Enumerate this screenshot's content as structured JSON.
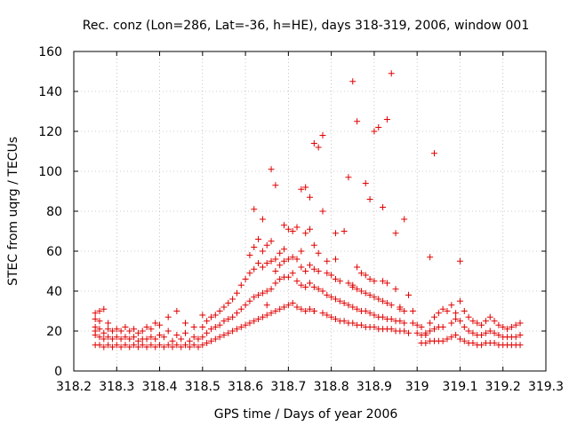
{
  "chart_data": {
    "type": "scatter",
    "title": "Rec. conz (Lon=286, Lat=-36, h=HE), days 318-319, 2006, window 001",
    "xlabel": "GPS time / Days of year 2006",
    "ylabel": "STEC from uqrg / TECUs",
    "xlim": [
      318.2,
      319.3
    ],
    "ylim": [
      0,
      160
    ],
    "xticks": [
      318.2,
      318.3,
      318.4,
      318.5,
      318.6,
      318.7,
      318.8,
      318.9,
      319.0,
      319.1,
      319.2,
      319.3
    ],
    "xtick_labels": [
      "318.2",
      "318.3",
      "318.4",
      "318.5",
      "318.6",
      "318.7",
      "318.8",
      "318.9",
      "319",
      "319.1",
      "319.2",
      "319.3"
    ],
    "yticks": [
      0,
      20,
      40,
      60,
      80,
      100,
      120,
      140,
      160
    ],
    "ytick_labels": [
      "0",
      "20",
      "40",
      "60",
      "80",
      "100",
      "120",
      "140",
      "160"
    ],
    "grid": true,
    "marker": "+",
    "marker_color": "#e00000",
    "series": [
      {
        "name": "STEC",
        "x": [
          318.25,
          318.25,
          318.25,
          318.25,
          318.25,
          318.25,
          318.26,
          318.26,
          318.26,
          318.26,
          318.26,
          318.27,
          318.27,
          318.27,
          318.27,
          318.28,
          318.28,
          318.28,
          318.28,
          318.29,
          318.29,
          318.29,
          318.3,
          318.3,
          318.3,
          318.31,
          318.31,
          318.31,
          318.32,
          318.32,
          318.32,
          318.33,
          318.33,
          318.33,
          318.34,
          318.34,
          318.34,
          318.35,
          318.35,
          318.35,
          318.36,
          318.36,
          318.36,
          318.37,
          318.37,
          318.37,
          318.38,
          318.38,
          318.38,
          318.39,
          318.39,
          318.39,
          318.4,
          318.4,
          318.4,
          318.41,
          318.41,
          318.42,
          318.42,
          318.42,
          318.43,
          318.43,
          318.44,
          318.44,
          318.44,
          318.45,
          318.45,
          318.46,
          318.46,
          318.46,
          318.47,
          318.47,
          318.48,
          318.48,
          318.48,
          318.49,
          318.49,
          318.5,
          318.5,
          318.5,
          318.5,
          318.51,
          318.51,
          318.51,
          318.52,
          318.52,
          318.52,
          318.53,
          318.53,
          318.53,
          318.54,
          318.54,
          318.54,
          318.55,
          318.55,
          318.55,
          318.56,
          318.56,
          318.56,
          318.57,
          318.57,
          318.57,
          318.58,
          318.58,
          318.58,
          318.59,
          318.59,
          318.59,
          318.6,
          318.6,
          318.6,
          318.61,
          318.61,
          318.61,
          318.61,
          318.62,
          318.62,
          318.62,
          318.62,
          318.63,
          318.63,
          318.63,
          318.63,
          318.64,
          318.64,
          318.64,
          318.64,
          318.65,
          318.65,
          318.65,
          318.65,
          318.65,
          318.66,
          318.66,
          318.66,
          318.66,
          318.67,
          318.67,
          318.67,
          318.67,
          318.68,
          318.68,
          318.68,
          318.68,
          318.69,
          318.69,
          318.69,
          318.69,
          318.7,
          318.7,
          318.7,
          318.7,
          318.71,
          318.71,
          318.71,
          318.71,
          318.72,
          318.72,
          318.72,
          318.72,
          318.73,
          318.73,
          318.73,
          318.73,
          318.74,
          318.74,
          318.74,
          318.74,
          318.75,
          318.75,
          318.75,
          318.75,
          318.76,
          318.76,
          318.76,
          318.76,
          318.76,
          318.77,
          318.77,
          318.77,
          318.78,
          318.78,
          318.78,
          318.79,
          318.79,
          318.79,
          318.79,
          318.8,
          318.8,
          318.8,
          318.81,
          318.81,
          318.81,
          318.81,
          318.82,
          318.82,
          318.82,
          318.83,
          318.83,
          318.83,
          318.84,
          318.84,
          318.84,
          318.85,
          318.85,
          318.85,
          318.85,
          318.86,
          318.86,
          318.86,
          318.86,
          318.87,
          318.87,
          318.87,
          318.87,
          318.88,
          318.88,
          318.88,
          318.88,
          318.89,
          318.89,
          318.89,
          318.89,
          318.9,
          318.9,
          318.9,
          318.9,
          318.91,
          318.91,
          318.91,
          318.92,
          318.92,
          318.92,
          318.92,
          318.93,
          318.93,
          318.93,
          318.93,
          318.94,
          318.94,
          318.94,
          318.95,
          318.95,
          318.95,
          318.96,
          318.96,
          318.96,
          318.96,
          318.97,
          318.97,
          318.97,
          318.98,
          318.98,
          318.99,
          318.99,
          319.0,
          319.0,
          319.01,
          319.01,
          319.01,
          319.02,
          319.02,
          319.02,
          319.03,
          319.03,
          319.03,
          319.04,
          319.04,
          319.04,
          319.05,
          319.05,
          319.05,
          319.06,
          319.06,
          319.06,
          319.07,
          319.07,
          319.08,
          319.08,
          319.08,
          319.09,
          319.09,
          319.09,
          319.1,
          319.1,
          319.1,
          319.11,
          319.11,
          319.11,
          319.12,
          319.12,
          319.12,
          319.13,
          319.13,
          319.13,
          319.14,
          319.14,
          319.14,
          319.15,
          319.15,
          319.15,
          319.16,
          319.16,
          319.16,
          319.17,
          319.17,
          319.17,
          319.18,
          319.18,
          319.18,
          319.19,
          319.19,
          319.19,
          319.2,
          319.2,
          319.2,
          319.21,
          319.21,
          319.21,
          319.22,
          319.22,
          319.22,
          319.23,
          319.23,
          319.23,
          319.24,
          319.24,
          319.24,
          318.62,
          318.64,
          318.66,
          318.67,
          318.69,
          318.73,
          318.74,
          318.75,
          318.76,
          318.77,
          318.78,
          318.81,
          318.84,
          318.85,
          318.86,
          318.88,
          318.89,
          318.9,
          318.91,
          318.92,
          318.93,
          318.94,
          318.95,
          318.97,
          319.03,
          319.04,
          319.1
        ],
        "y": [
          13,
          18,
          22,
          26,
          29,
          20,
          13,
          17,
          21,
          25,
          30,
          12,
          16,
          19,
          31,
          13,
          17,
          21,
          24,
          12,
          16,
          20,
          13,
          17,
          21,
          12,
          16,
          20,
          13,
          17,
          22,
          12,
          16,
          20,
          13,
          17,
          21,
          12,
          15,
          19,
          13,
          16,
          20,
          12,
          16,
          22,
          13,
          17,
          21,
          12,
          16,
          24,
          13,
          18,
          23,
          12,
          17,
          13,
          20,
          27,
          12,
          15,
          13,
          18,
          30,
          12,
          16,
          13,
          19,
          24,
          12,
          15,
          13,
          17,
          22,
          12,
          16,
          13,
          17,
          22,
          28,
          14,
          19,
          25,
          15,
          21,
          27,
          16,
          22,
          28,
          17,
          23,
          30,
          18,
          25,
          32,
          19,
          26,
          34,
          20,
          27,
          36,
          21,
          29,
          39,
          22,
          31,
          43,
          23,
          33,
          46,
          24,
          35,
          49,
          58,
          25,
          37,
          51,
          62,
          26,
          38,
          54,
          66,
          27,
          39,
          52,
          60,
          28,
          40,
          54,
          63,
          33,
          29,
          41,
          55,
          65,
          30,
          44,
          50,
          56,
          31,
          46,
          53,
          59,
          32,
          47,
          55,
          61,
          33,
          47,
          56,
          71,
          34,
          49,
          57,
          70,
          32,
          45,
          56,
          72,
          31,
          43,
          52,
          60,
          30,
          42,
          50,
          69,
          31,
          44,
          53,
          71,
          30,
          42,
          51,
          63,
          30,
          41,
          50,
          59,
          118,
          29,
          40,
          55,
          28,
          38,
          49,
          27,
          37,
          48,
          56,
          26,
          36,
          46,
          25,
          35,
          45,
          70,
          25,
          34,
          44,
          24,
          33,
          43,
          24,
          32,
          42,
          23,
          31,
          41,
          52,
          23,
          30,
          40,
          49,
          22,
          30,
          39,
          48,
          22,
          29,
          38,
          46,
          22,
          28,
          37,
          45,
          21,
          27,
          36,
          45,
          21,
          27,
          35,
          21,
          26,
          34,
          44,
          21,
          26,
          33,
          41,
          20,
          25,
          32,
          20,
          25,
          31,
          20,
          24,
          30,
          38,
          19,
          24,
          30,
          19,
          23,
          18,
          22,
          14,
          19,
          14,
          18,
          24,
          15,
          20,
          27,
          15,
          21,
          29,
          15,
          22,
          31,
          15,
          22,
          30,
          16,
          24,
          33,
          17,
          26,
          18,
          29,
          16,
          25,
          35,
          15,
          22,
          30,
          14,
          20,
          27,
          14,
          19,
          25,
          13,
          18,
          24,
          13,
          18,
          23,
          14,
          19,
          25,
          14,
          20,
          27,
          14,
          19,
          25,
          13,
          18,
          23,
          13,
          17,
          22,
          13,
          17,
          21,
          13,
          17,
          22,
          13,
          17,
          23,
          13,
          18,
          24,
          81,
          76,
          101,
          93,
          73,
          91,
          92,
          87,
          114,
          112,
          80,
          69,
          97,
          145,
          125,
          94,
          86,
          120,
          122,
          82,
          126,
          149,
          69,
          76,
          57,
          109,
          55
        ]
      }
    ]
  }
}
